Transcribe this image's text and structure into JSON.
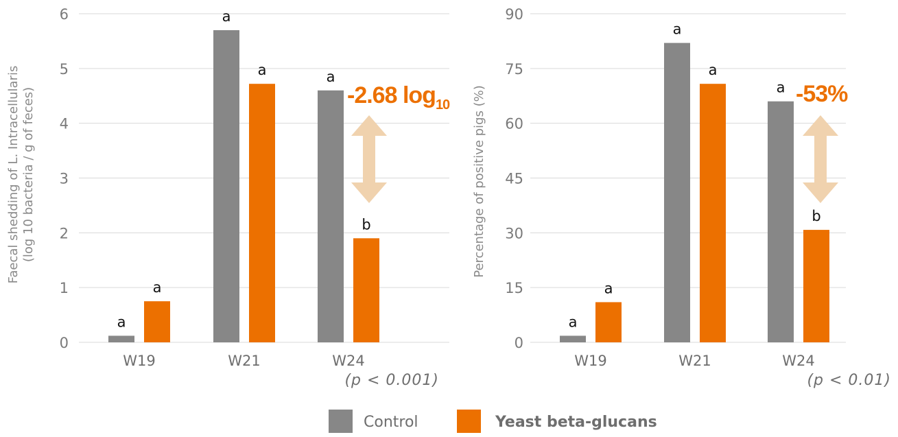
{
  "colors": {
    "control": "#878787",
    "yeast": "#ec7000",
    "arrow": "#f0d2ae",
    "grid": "#d9d9d9",
    "callout": "#ec7000"
  },
  "chart_data": [
    {
      "type": "bar",
      "categories": [
        "W19",
        "W21",
        "W24"
      ],
      "series": [
        {
          "name": "Control",
          "values": [
            0.12,
            5.7,
            4.6
          ],
          "letters": [
            "a",
            "a",
            "a"
          ]
        },
        {
          "name": "Yeast beta-glucans",
          "values": [
            0.75,
            4.72,
            1.9
          ],
          "letters": [
            "a",
            "a",
            "b"
          ]
        }
      ],
      "ylabel_line1": "Faecal shedding of L. Intracellularis",
      "ylabel_line2": "(log 10 bacteria / g of feces)",
      "ylim": [
        0,
        6
      ],
      "yticks": [
        "0",
        "1",
        "2",
        "3",
        "4",
        "5",
        "6"
      ],
      "grid": true,
      "annotation": {
        "prefix": "-2.68 log",
        "subscript": "10"
      },
      "pvalue": "(p < 0.001)"
    },
    {
      "type": "bar",
      "categories": [
        "W19",
        "W21",
        "W24"
      ],
      "series": [
        {
          "name": "Control",
          "values": [
            1.8,
            82,
            66
          ],
          "letters": [
            "a",
            "a",
            "a"
          ]
        },
        {
          "name": "Yeast beta-glucans",
          "values": [
            11,
            70.8,
            30.8
          ],
          "letters": [
            "a",
            "a",
            "b"
          ]
        }
      ],
      "ylabel": "Percentage of positive pigs (%)",
      "ylim": [
        0,
        90
      ],
      "yticks": [
        "0",
        "15",
        "30",
        "45",
        "60",
        "75",
        "90"
      ],
      "grid": true,
      "annotation": {
        "prefix": "-53%",
        "subscript": ""
      },
      "pvalue": "(p < 0.01)"
    }
  ],
  "legend": {
    "items": [
      "Control",
      "Yeast beta-glucans"
    ],
    "placement": "bottom-center"
  }
}
